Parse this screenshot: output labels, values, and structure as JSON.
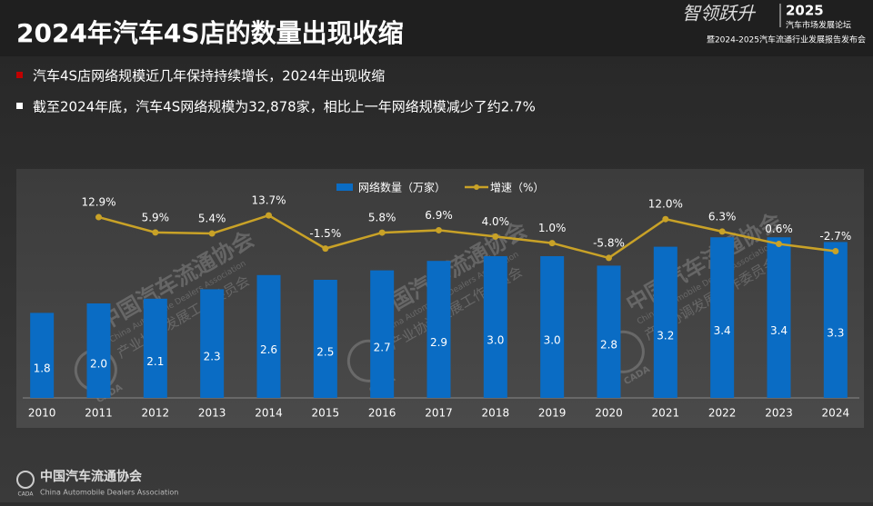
{
  "header": {
    "title": "2024年汽车4S店的数量出现收缩"
  },
  "branding": {
    "slogan": "智领跃升",
    "year": "2025",
    "forum": "汽车市场发展论坛",
    "event": "暨2024-2025汽车流通行业发展报告发布会"
  },
  "bullets": [
    "汽车4S店网络规模近几年保持持续增长，2024年出现收缩",
    "截至2024年底，汽车4S网络规模为32,878家，相比上一年网络规模减少了约2.7%"
  ],
  "watermark": {
    "name": "中国汽车流通协会",
    "english": "China Automobile Dealers Association",
    "committee": "产业协调发展工作委员会",
    "logo": "CADA"
  },
  "footer": {
    "name": "中国汽车流通协会",
    "english": "China Automobile Dealers Association",
    "logo": "CADA"
  },
  "chart_data": {
    "type": "bar",
    "categories": [
      "2010",
      "2011",
      "2012",
      "2013",
      "2014",
      "2015",
      "2016",
      "2017",
      "2018",
      "2019",
      "2020",
      "2021",
      "2022",
      "2023",
      "2024"
    ],
    "ylim": [
      0,
      6
    ],
    "y2lim": [
      -70,
      60
    ],
    "legend": "top",
    "series": [
      {
        "name": "网络数量（万家）",
        "type": "bar",
        "color": "#0a6cc4",
        "values": [
          1.8,
          2.0,
          2.1,
          2.3,
          2.6,
          2.5,
          2.7,
          2.9,
          3.0,
          3.0,
          2.8,
          3.2,
          3.4,
          3.4,
          3.3
        ],
        "value_labels": [
          "1.8",
          "2.0",
          "2.1",
          "2.3",
          "2.6",
          "2.5",
          "2.7",
          "2.9",
          "3.0",
          "3.0",
          "2.8",
          "3.2",
          "3.4",
          "3.4",
          "3.3"
        ]
      },
      {
        "name": "增速（%）",
        "type": "line",
        "axis": "y2",
        "color": "#c9a227",
        "values": [
          null,
          12.9,
          5.9,
          5.4,
          13.7,
          -1.5,
          5.8,
          6.9,
          4.0,
          1.0,
          -5.8,
          12.0,
          6.3,
          0.6,
          -2.7
        ],
        "value_labels": [
          null,
          "12.9%",
          "5.9%",
          "5.4%",
          "13.7%",
          "-1.5%",
          "5.8%",
          "6.9%",
          "4.0%",
          "1.0%",
          "-5.8%",
          "12.0%",
          "6.3%",
          "0.6%",
          "-2.7%"
        ]
      }
    ]
  }
}
